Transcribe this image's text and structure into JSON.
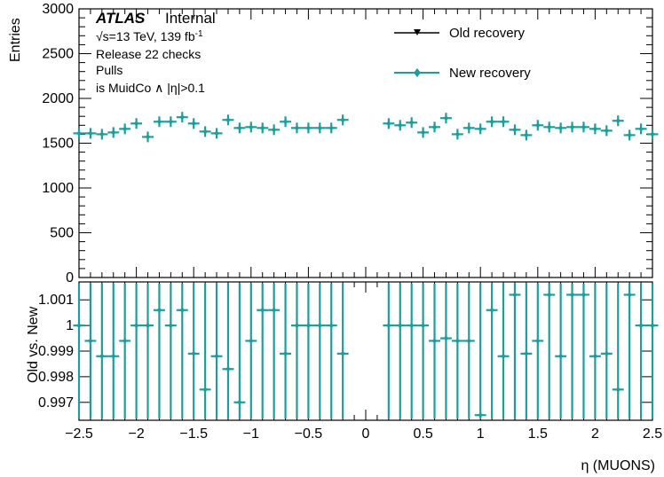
{
  "labels": {
    "atlas": "ATLAS",
    "internal": "Internal",
    "energy": "√s=13 TeV, 139 fb",
    "energy_sup": "-1",
    "line2": "Release 22 checks",
    "line3": "Pulls",
    "line4": "is MuidCo ∧ |η|>0.1",
    "legend_old": "Old recovery",
    "legend_new": "New recovery"
  },
  "colors": {
    "new": "#1e9e9a",
    "old": "#000000"
  },
  "chart_data": [
    {
      "type": "scatter",
      "panel": "top",
      "ylabel": "Entries",
      "ylim": [
        0,
        3000
      ],
      "yticks": [
        "0",
        "500",
        "1000",
        "1500",
        "2000",
        "2500",
        "3000"
      ],
      "xlim": [
        -2.5,
        2.5
      ],
      "bin_width": 0.1,
      "legend": "top-right",
      "series": [
        {
          "name": "Old recovery",
          "values": [
            1610,
            1610,
            1600,
            1620,
            1660,
            1720,
            1570,
            1740,
            1740,
            1790,
            1720,
            1630,
            1610,
            1760,
            1670,
            1680,
            1670,
            1650,
            1740,
            1670,
            1670,
            1670,
            1670,
            1760,
            null,
            null,
            null,
            1720,
            1700,
            1730,
            1620,
            1680,
            1780,
            1600,
            1670,
            1660,
            1740,
            1740,
            1650,
            1590,
            1700,
            1680,
            1670,
            1680,
            1680,
            1660,
            1640,
            1750,
            1590,
            1660,
            1600
          ]
        },
        {
          "name": "New recovery",
          "values": [
            1610,
            1610,
            1600,
            1620,
            1660,
            1720,
            1570,
            1740,
            1740,
            1790,
            1720,
            1630,
            1610,
            1760,
            1670,
            1680,
            1670,
            1650,
            1740,
            1670,
            1670,
            1670,
            1670,
            1760,
            null,
            null,
            null,
            1720,
            1700,
            1730,
            1620,
            1680,
            1780,
            1600,
            1670,
            1660,
            1740,
            1740,
            1650,
            1590,
            1700,
            1680,
            1670,
            1680,
            1680,
            1660,
            1640,
            1750,
            1590,
            1660,
            1600
          ]
        }
      ]
    },
    {
      "type": "scatter",
      "panel": "ratio",
      "xlabel": "η (MUONS)",
      "ylabel": "Old vs. New",
      "ylim": [
        0.9963,
        1.0017
      ],
      "yticks": [
        "0.997",
        "0.998",
        "0.999",
        "1",
        "1.001"
      ],
      "xlim": [
        -2.5,
        2.5
      ],
      "xticks": [
        "−2.5",
        "−2",
        "−1.5",
        "−1",
        "−0.5",
        "0",
        "0.5",
        "1",
        "1.5",
        "2",
        "2.5"
      ],
      "series": [
        {
          "name": "ratio",
          "values": [
            1.0,
            0.9994,
            0.9988,
            0.9988,
            0.9994,
            1.0,
            1.0,
            1.0006,
            1.0,
            1.0006,
            0.9989,
            0.9975,
            0.9988,
            0.9983,
            0.997,
            0.9994,
            1.0006,
            1.0006,
            0.9989,
            1.0,
            1.0,
            1.0,
            1.0,
            0.9989,
            null,
            null,
            null,
            1.0,
            1.0,
            1.0,
            1.0,
            0.9994,
            0.9995,
            0.9994,
            0.9994,
            0.9965,
            1.0006,
            0.9988,
            1.0012,
            0.9989,
            0.9994,
            1.0012,
            0.9988,
            1.0012,
            1.0012,
            0.9988,
            0.9989,
            0.9975,
            1.0012,
            1.0,
            1.0
          ]
        }
      ]
    }
  ]
}
